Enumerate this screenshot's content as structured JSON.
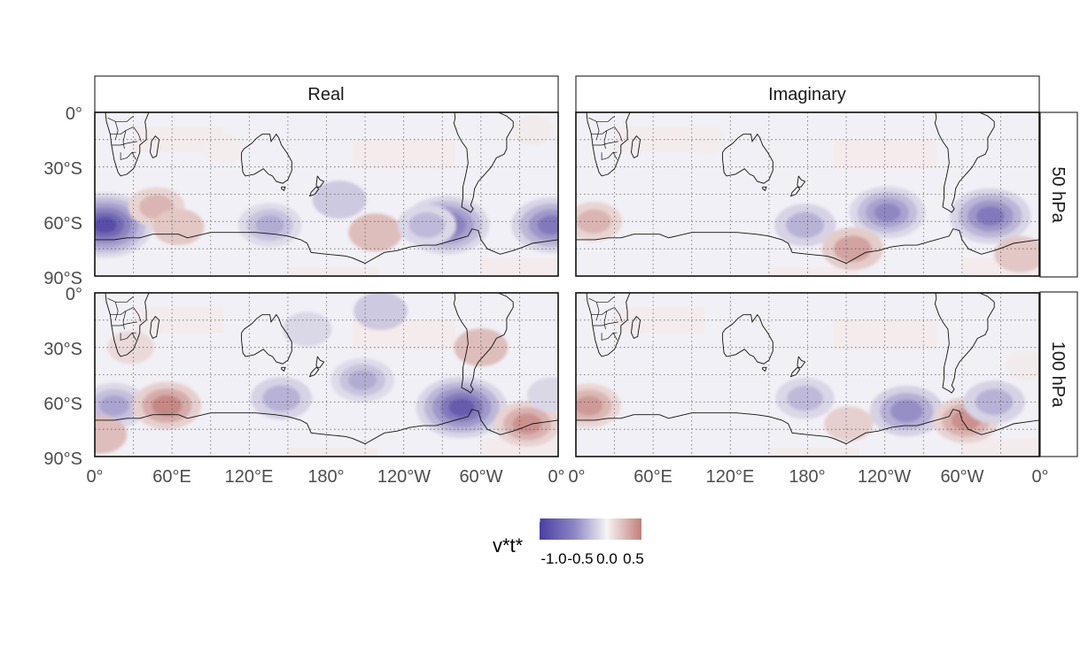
{
  "chart_data": {
    "type": "heatmap",
    "description_of_variable": "v*t*",
    "facets": {
      "columns": [
        "Real",
        "Imaginary"
      ],
      "rows": [
        "50 hPa",
        "100 hPa"
      ]
    },
    "x_axis": {
      "ticks": [
        "0°",
        "60°E",
        "120°E",
        "180°",
        "120°W",
        "60°W",
        "0°"
      ],
      "lim": [
        0,
        360
      ]
    },
    "y_axis": {
      "ticks": [
        "0°",
        "30°S",
        "60°S",
        "90°S"
      ],
      "lim": [
        -90,
        0
      ]
    },
    "legend": {
      "title": "v*t*",
      "tick_labels": [
        "-1.0",
        "-0.5",
        "0.0",
        "0.5"
      ],
      "range": [
        -1.25,
        0.65
      ],
      "low_color": "#4a3fa0",
      "mid_color": "#f6f4f4",
      "high_color": "#c27f7b",
      "placement": "bottom"
    },
    "panels": [
      {
        "column": "Real",
        "row": "50 hPa",
        "blobs": [
          {
            "lon": 8,
            "lat": -62,
            "value": -1.15
          },
          {
            "lon": 355,
            "lat": -62,
            "value": -0.85
          },
          {
            "lon": 48,
            "lat": -52,
            "value": 0.35
          },
          {
            "lon": 65,
            "lat": -63,
            "value": 0.25
          },
          {
            "lon": 136,
            "lat": -62,
            "value": -0.5
          },
          {
            "lon": 190,
            "lat": -48,
            "value": -0.3
          },
          {
            "lon": 218,
            "lat": -66,
            "value": 0.3
          },
          {
            "lon": 273,
            "lat": -62,
            "value": -0.95
          },
          {
            "lon": 258,
            "lat": -62,
            "value": -0.4
          },
          {
            "lon": 340,
            "lat": -10,
            "value": 0.05
          },
          {
            "lon": 100,
            "lat": -20,
            "value": 0.04
          }
        ]
      },
      {
        "column": "Imaginary",
        "row": "50 hPa",
        "blobs": [
          {
            "lon": 14,
            "lat": -60,
            "value": 0.35
          },
          {
            "lon": 178,
            "lat": -62,
            "value": -0.45
          },
          {
            "lon": 242,
            "lat": -55,
            "value": -0.75
          },
          {
            "lon": 215,
            "lat": -75,
            "value": 0.45
          },
          {
            "lon": 322,
            "lat": -57,
            "value": -0.85
          },
          {
            "lon": 345,
            "lat": -78,
            "value": 0.25
          },
          {
            "lon": 100,
            "lat": -15,
            "value": 0.04
          }
        ]
      },
      {
        "column": "Real",
        "row": "100 hPa",
        "blobs": [
          {
            "lon": 15,
            "lat": -62,
            "value": -0.55
          },
          {
            "lon": 4,
            "lat": -78,
            "value": 0.3
          },
          {
            "lon": 56,
            "lat": -62,
            "value": 0.6
          },
          {
            "lon": 145,
            "lat": -58,
            "value": -0.45
          },
          {
            "lon": 208,
            "lat": -48,
            "value": -0.5
          },
          {
            "lon": 222,
            "lat": -10,
            "value": -0.3
          },
          {
            "lon": 165,
            "lat": -20,
            "value": -0.2
          },
          {
            "lon": 285,
            "lat": -63,
            "value": -1.05
          },
          {
            "lon": 300,
            "lat": -30,
            "value": 0.3
          },
          {
            "lon": 336,
            "lat": -72,
            "value": 0.55
          },
          {
            "lon": 355,
            "lat": -56,
            "value": -0.2
          },
          {
            "lon": 28,
            "lat": -30,
            "value": 0.15
          }
        ]
      },
      {
        "column": "Imaginary",
        "row": "100 hPa",
        "blobs": [
          {
            "lon": 10,
            "lat": -62,
            "value": 0.5
          },
          {
            "lon": 178,
            "lat": -58,
            "value": -0.4
          },
          {
            "lon": 257,
            "lat": -65,
            "value": -0.7
          },
          {
            "lon": 303,
            "lat": -70,
            "value": 0.55
          },
          {
            "lon": 325,
            "lat": -60,
            "value": -0.45
          },
          {
            "lon": 212,
            "lat": -72,
            "value": 0.2
          },
          {
            "lon": 350,
            "lat": -40,
            "value": 0.05
          }
        ]
      }
    ]
  }
}
